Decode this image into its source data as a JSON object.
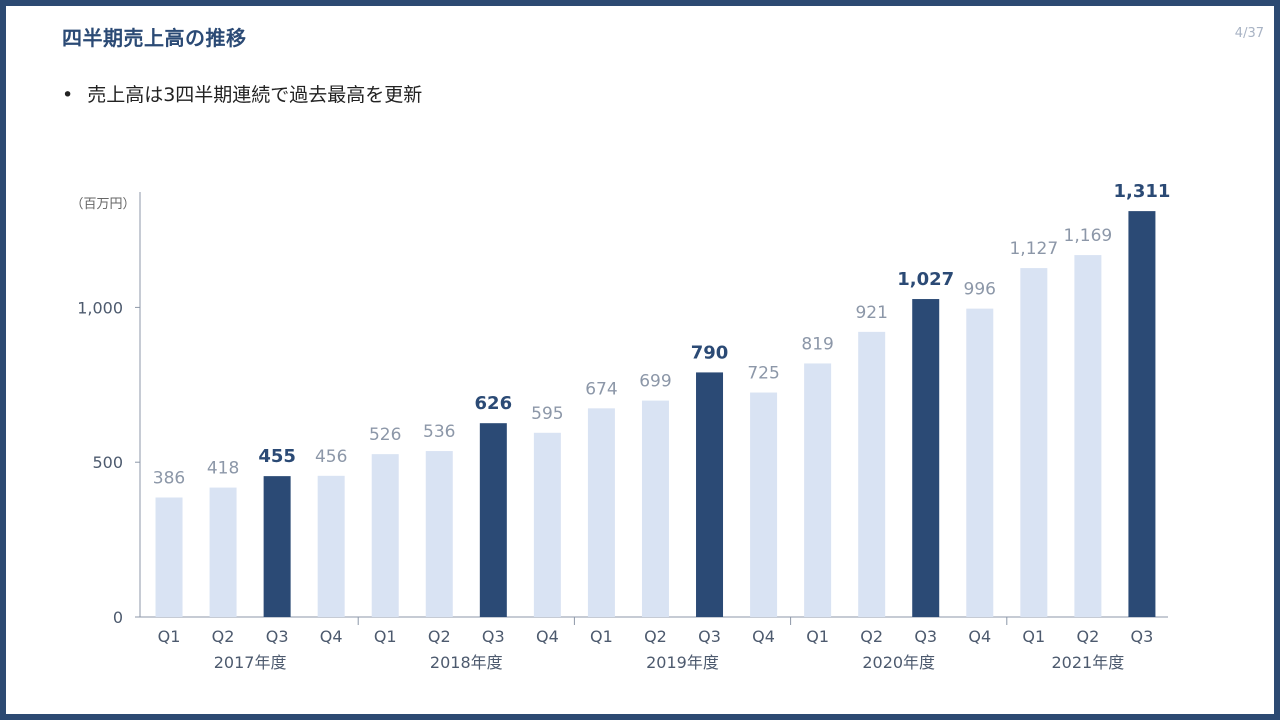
{
  "slide": {
    "title": "四半期売上高の推移",
    "page_number": "4/37",
    "bullet": "売上高は3四半期連続で過去最高を更新"
  },
  "colors": {
    "highlight": "#2b4a75",
    "normal": "#d9e3f3",
    "label_highlight": "#2b4a75",
    "label_normal": "#8c97a8",
    "axis": "#8c97a8"
  },
  "chart_data": {
    "type": "bar",
    "unit_label": "（百万円）",
    "categories": [
      "Q1",
      "Q2",
      "Q3",
      "Q4",
      "Q1",
      "Q2",
      "Q3",
      "Q4",
      "Q1",
      "Q2",
      "Q3",
      "Q4",
      "Q1",
      "Q2",
      "Q3",
      "Q4",
      "Q1",
      "Q2",
      "Q3"
    ],
    "groups": [
      "2017年度",
      "2018年度",
      "2019年度",
      "2020年度",
      "2021年度"
    ],
    "values": [
      386,
      418,
      455,
      456,
      526,
      536,
      626,
      595,
      674,
      699,
      790,
      725,
      819,
      921,
      1027,
      996,
      1127,
      1169,
      1311
    ],
    "value_labels": [
      "386",
      "418",
      "455",
      "456",
      "526",
      "536",
      "626",
      "595",
      "674",
      "699",
      "790",
      "725",
      "819",
      "921",
      "1,027",
      "996",
      "1,127",
      "1,169",
      "1,311"
    ],
    "highlight_indices": [
      2,
      6,
      10,
      14,
      18
    ],
    "yticks": [
      0,
      500,
      1000
    ],
    "ytick_labels": [
      "0",
      "500",
      "1,000"
    ],
    "ylim": [
      0,
      1400
    ]
  }
}
